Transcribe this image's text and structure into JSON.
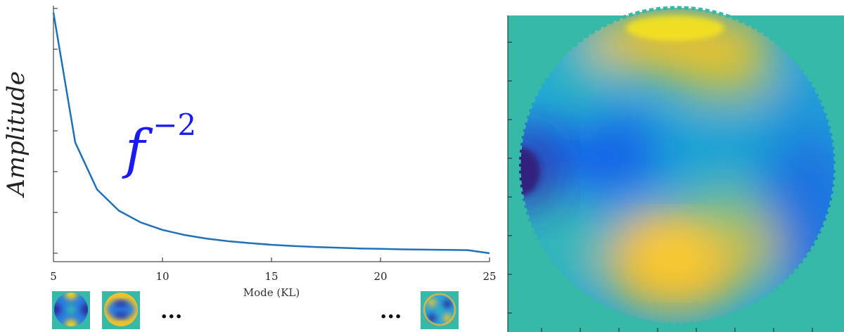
{
  "colors": {
    "line": "#1f72b8",
    "annotation": "#1a1af5",
    "map_background": "#36b9a6"
  },
  "chart_data": [
    {
      "type": "line",
      "xlabel": "Mode (KL)",
      "ylabel": "Amplitude",
      "xlim": [
        5,
        25
      ],
      "xticks": [
        "5",
        "10",
        "15",
        "20",
        "25"
      ],
      "ytick_labels_shown": false,
      "annotation": {
        "base": "f",
        "exponent": "−2"
      },
      "series": [
        {
          "x": [
            5,
            6,
            7,
            8,
            9,
            10,
            11,
            12,
            13,
            14,
            15,
            16,
            17,
            18,
            19,
            20,
            21,
            22,
            23,
            24,
            25
          ],
          "y": [
            1.0,
            0.46,
            0.265,
            0.177,
            0.128,
            0.097,
            0.076,
            0.061,
            0.05,
            0.042,
            0.035,
            0.03,
            0.026,
            0.023,
            0.02,
            0.018,
            0.016,
            0.015,
            0.014,
            0.013,
            0.0
          ]
        }
      ],
      "mode_thumbnails": [
        "mode-5",
        "mode-6",
        "mode-25"
      ],
      "ellipsis": "..."
    },
    {
      "type": "heatmap",
      "description_of_content": "circular aperture phase map",
      "tick_labels_shown": false
    }
  ]
}
